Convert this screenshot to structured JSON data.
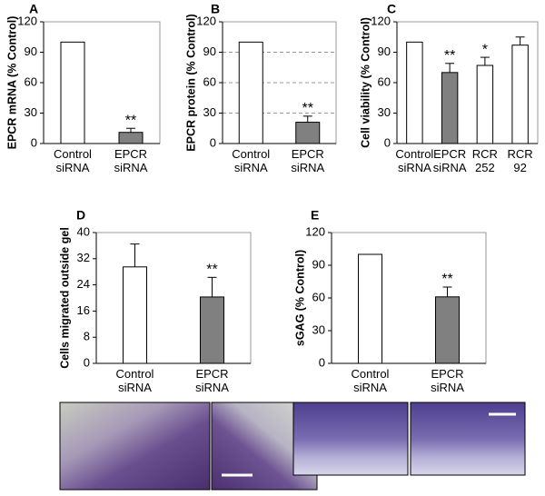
{
  "chart_data": [
    {
      "type": "bar",
      "panel": "A",
      "ylabel": "EPCR mRNA (% Control)",
      "categories": [
        "Control siRNA",
        "EPCR siRNA"
      ],
      "values": [
        100,
        11
      ],
      "errors": [
        null,
        4
      ],
      "colors": [
        "#ffffff",
        "#808080"
      ],
      "annotations": [
        null,
        "**"
      ],
      "ylim": [
        0,
        120
      ],
      "yticks": [
        0,
        30,
        60,
        90,
        120
      ],
      "grid": false
    },
    {
      "type": "bar",
      "panel": "B",
      "ylabel": "EPCR protein (% Control)",
      "categories": [
        "Control siRNA",
        "EPCR siRNA"
      ],
      "values": [
        100,
        21
      ],
      "errors": [
        null,
        6
      ],
      "colors": [
        "#ffffff",
        "#808080"
      ],
      "annotations": [
        null,
        "**"
      ],
      "ylim": [
        0,
        120
      ],
      "yticks": [
        0,
        30,
        60,
        90,
        120
      ],
      "grid": true
    },
    {
      "type": "bar",
      "panel": "C",
      "ylabel": "Cell viability (% Control)",
      "categories": [
        "Control siRNA",
        "EPCR siRNA",
        "RCR 252",
        "RCR 92"
      ],
      "values": [
        100,
        70,
        77,
        97
      ],
      "errors": [
        null,
        9,
        8,
        8
      ],
      "colors": [
        "#ffffff",
        "#808080",
        "#ffffff",
        "#ffffff"
      ],
      "annotations": [
        null,
        "**",
        "*",
        null
      ],
      "ylim": [
        0,
        120
      ],
      "yticks": [
        0,
        30,
        60,
        90,
        120
      ],
      "grid": false
    },
    {
      "type": "bar",
      "panel": "D",
      "ylabel": "Cells migrated outside gel",
      "categories": [
        "Control siRNA",
        "EPCR siRNA"
      ],
      "values": [
        29.5,
        20.3
      ],
      "errors": [
        7,
        6
      ],
      "colors": [
        "#ffffff",
        "#808080"
      ],
      "annotations": [
        null,
        "**"
      ],
      "ylim": [
        0,
        40
      ],
      "yticks": [
        0,
        8,
        16,
        24,
        32,
        40
      ],
      "grid": false
    },
    {
      "type": "bar",
      "panel": "E",
      "ylabel": "sGAG (% Control)",
      "categories": [
        "Control siRNA",
        "EPCR siRNA"
      ],
      "values": [
        100,
        61
      ],
      "errors": [
        null,
        9
      ],
      "colors": [
        "#ffffff",
        "#808080"
      ],
      "annotations": [
        null,
        "**"
      ],
      "ylim": [
        0,
        120
      ],
      "yticks": [
        0,
        30,
        60,
        90,
        120
      ],
      "grid": false
    }
  ]
}
